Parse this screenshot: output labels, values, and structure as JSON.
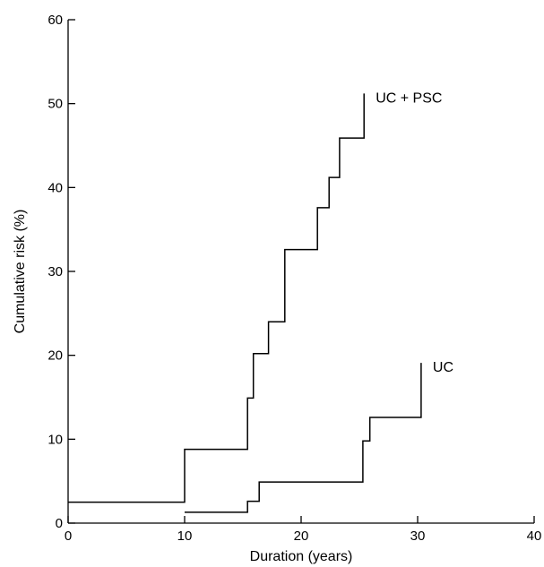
{
  "chart_data": {
    "type": "line",
    "step": true,
    "xlabel": "Duration (years)",
    "ylabel": "Cumulative risk (%)",
    "xlim": [
      0,
      40
    ],
    "ylim": [
      0,
      60
    ],
    "xticks": [
      0,
      10,
      20,
      30,
      40
    ],
    "yticks": [
      0,
      10,
      20,
      30,
      40,
      50,
      60
    ],
    "grid": false,
    "legend": "none",
    "series": [
      {
        "name": "UC + PSC",
        "x": [
          0,
          10,
          15.4,
          15.9,
          17.2,
          18.6,
          21.4,
          22.4,
          23.3,
          25.4
        ],
        "y": [
          2.5,
          8.8,
          14.9,
          20.2,
          24.0,
          32.6,
          37.6,
          41.2,
          45.9,
          51.2
        ],
        "end_x": 25.4
      },
      {
        "name": "UC",
        "x": [
          10,
          15.4,
          16.4,
          25.3,
          25.9,
          30.3
        ],
        "y": [
          1.3,
          2.6,
          4.9,
          9.8,
          12.6,
          19.1
        ],
        "end_x": 30.3
      }
    ]
  }
}
